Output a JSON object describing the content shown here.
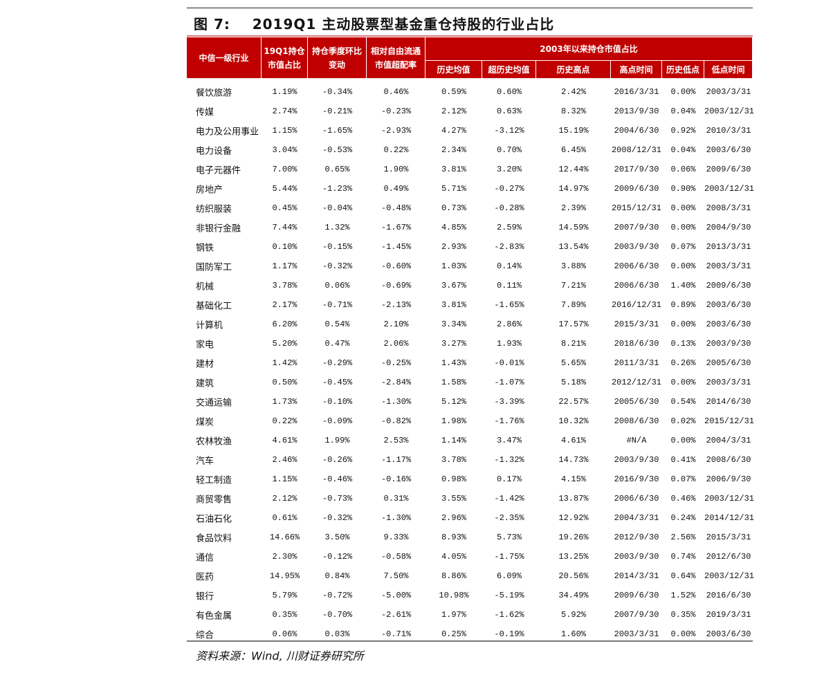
{
  "title": "图 7:    2019Q1 主动股票型基金重仓持股的行业占比",
  "header": {
    "industry": "中信一级行业",
    "share": "19Q1持仓\n市值占比",
    "qoq": "持仓季度环比\n变动",
    "overweight": "相对自由流通\n市值超配率",
    "group": "2003年以来持仓市值占比",
    "sub": [
      "历史均值",
      "超历史均值",
      "历史高点",
      "高点时间",
      "历史低点",
      "低点时间"
    ]
  },
  "rows": [
    [
      "餐饮旅游",
      "1.19%",
      "-0.34%",
      "0.46%",
      "0.59%",
      "0.60%",
      "2.42%",
      "2016/3/31",
      "0.00%",
      "2003/3/31"
    ],
    [
      "传媒",
      "2.74%",
      "-0.21%",
      "-0.23%",
      "2.12%",
      "0.63%",
      "8.32%",
      "2013/9/30",
      "0.04%",
      "2003/12/31"
    ],
    [
      "电力及公用事业",
      "1.15%",
      "-1.65%",
      "-2.93%",
      "4.27%",
      "-3.12%",
      "15.19%",
      "2004/6/30",
      "0.92%",
      "2010/3/31"
    ],
    [
      "电力设备",
      "3.04%",
      "-0.53%",
      "0.22%",
      "2.34%",
      "0.70%",
      "6.45%",
      "2008/12/31",
      "0.04%",
      "2003/6/30"
    ],
    [
      "电子元器件",
      "7.00%",
      "0.65%",
      "1.90%",
      "3.81%",
      "3.20%",
      "12.44%",
      "2017/9/30",
      "0.06%",
      "2009/6/30"
    ],
    [
      "房地产",
      "5.44%",
      "-1.23%",
      "0.49%",
      "5.71%",
      "-0.27%",
      "14.97%",
      "2009/6/30",
      "0.90%",
      "2003/12/31"
    ],
    [
      "纺织服装",
      "0.45%",
      "-0.04%",
      "-0.48%",
      "0.73%",
      "-0.28%",
      "2.39%",
      "2015/12/31",
      "0.00%",
      "2008/3/31"
    ],
    [
      "非银行金融",
      "7.44%",
      "1.32%",
      "-1.67%",
      "4.85%",
      "2.59%",
      "14.59%",
      "2007/9/30",
      "0.00%",
      "2004/9/30"
    ],
    [
      "钢铁",
      "0.10%",
      "-0.15%",
      "-1.45%",
      "2.93%",
      "-2.83%",
      "13.54%",
      "2003/9/30",
      "0.07%",
      "2013/3/31"
    ],
    [
      "国防军工",
      "1.17%",
      "-0.32%",
      "-0.60%",
      "1.03%",
      "0.14%",
      "3.88%",
      "2006/6/30",
      "0.00%",
      "2003/3/31"
    ],
    [
      "机械",
      "3.78%",
      "0.06%",
      "-0.69%",
      "3.67%",
      "0.11%",
      "7.21%",
      "2006/6/30",
      "1.40%",
      "2009/6/30"
    ],
    [
      "基础化工",
      "2.17%",
      "-0.71%",
      "-2.13%",
      "3.81%",
      "-1.65%",
      "7.89%",
      "2016/12/31",
      "0.89%",
      "2003/6/30"
    ],
    [
      "计算机",
      "6.20%",
      "0.54%",
      "2.10%",
      "3.34%",
      "2.86%",
      "17.57%",
      "2015/3/31",
      "0.00%",
      "2003/6/30"
    ],
    [
      "家电",
      "5.20%",
      "0.47%",
      "2.06%",
      "3.27%",
      "1.93%",
      "8.21%",
      "2018/6/30",
      "0.13%",
      "2003/9/30"
    ],
    [
      "建材",
      "1.42%",
      "-0.29%",
      "-0.25%",
      "1.43%",
      "-0.01%",
      "5.65%",
      "2011/3/31",
      "0.26%",
      "2005/6/30"
    ],
    [
      "建筑",
      "0.50%",
      "-0.45%",
      "-2.84%",
      "1.58%",
      "-1.07%",
      "5.18%",
      "2012/12/31",
      "0.00%",
      "2003/3/31"
    ],
    [
      "交通运输",
      "1.73%",
      "-0.10%",
      "-1.30%",
      "5.12%",
      "-3.39%",
      "22.57%",
      "2005/6/30",
      "0.54%",
      "2014/6/30"
    ],
    [
      "煤炭",
      "0.22%",
      "-0.09%",
      "-0.82%",
      "1.98%",
      "-1.76%",
      "10.32%",
      "2008/6/30",
      "0.02%",
      "2015/12/31"
    ],
    [
      "农林牧渔",
      "4.61%",
      "1.99%",
      "2.53%",
      "1.14%",
      "3.47%",
      "4.61%",
      "#N/A",
      "0.00%",
      "2004/3/31"
    ],
    [
      "汽车",
      "2.46%",
      "-0.26%",
      "-1.17%",
      "3.78%",
      "-1.32%",
      "14.73%",
      "2003/9/30",
      "0.41%",
      "2008/6/30"
    ],
    [
      "轻工制造",
      "1.15%",
      "-0.46%",
      "-0.16%",
      "0.98%",
      "0.17%",
      "4.15%",
      "2016/9/30",
      "0.07%",
      "2006/9/30"
    ],
    [
      "商贸零售",
      "2.12%",
      "-0.73%",
      "0.31%",
      "3.55%",
      "-1.42%",
      "13.87%",
      "2006/6/30",
      "0.46%",
      "2003/12/31"
    ],
    [
      "石油石化",
      "0.61%",
      "-0.32%",
      "-1.30%",
      "2.96%",
      "-2.35%",
      "12.92%",
      "2004/3/31",
      "0.24%",
      "2014/12/31"
    ],
    [
      "食品饮料",
      "14.66%",
      "3.50%",
      "9.33%",
      "8.93%",
      "5.73%",
      "19.26%",
      "2012/9/30",
      "2.56%",
      "2015/3/31"
    ],
    [
      "通信",
      "2.30%",
      "-0.12%",
      "-0.58%",
      "4.05%",
      "-1.75%",
      "13.25%",
      "2003/9/30",
      "0.74%",
      "2012/6/30"
    ],
    [
      "医药",
      "14.95%",
      "0.84%",
      "7.50%",
      "8.86%",
      "6.09%",
      "20.56%",
      "2014/3/31",
      "0.64%",
      "2003/12/31"
    ],
    [
      "银行",
      "5.79%",
      "-0.72%",
      "-5.00%",
      "10.98%",
      "-5.19%",
      "34.49%",
      "2009/6/30",
      "1.52%",
      "2016/6/30"
    ],
    [
      "有色金属",
      "0.35%",
      "-0.70%",
      "-2.61%",
      "1.97%",
      "-1.62%",
      "5.92%",
      "2007/9/30",
      "0.35%",
      "2019/3/31"
    ],
    [
      "综合",
      "0.06%",
      "0.03%",
      "-0.71%",
      "0.25%",
      "-0.19%",
      "1.60%",
      "2003/3/31",
      "0.00%",
      "2003/6/30"
    ]
  ],
  "source": "资料来源：Wind, 川财证券研究所",
  "colors": {
    "header_bg": "#c00000",
    "header_text": "#ffffff"
  }
}
